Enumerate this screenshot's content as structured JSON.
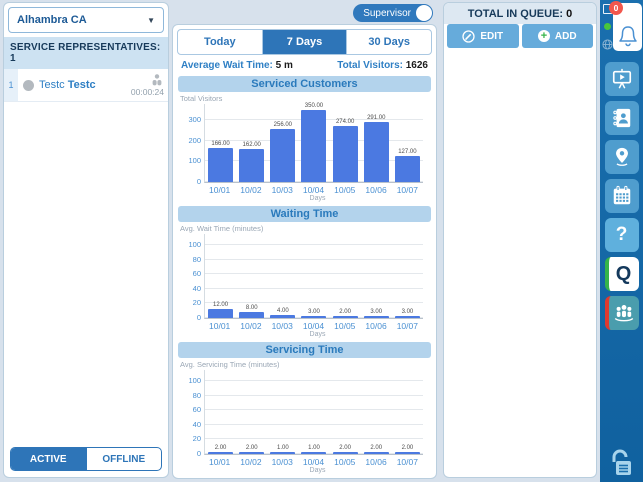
{
  "left_panel": {
    "location_dropdown": {
      "value": "Alhambra CA",
      "chevron": "▼"
    },
    "header": "SERVICE REPRESENTATIVES: 1",
    "representatives": [
      {
        "index": "1",
        "first_name": "Testc",
        "last_name": "Testc",
        "timer": "00:00:24"
      }
    ],
    "footer_tabs": [
      {
        "label": "ACTIVE",
        "selected": true
      },
      {
        "label": "OFFLINE",
        "selected": false
      }
    ]
  },
  "center_panel": {
    "supervisor_toggle": {
      "label": "Supervisor",
      "state": "on"
    },
    "period_tabs": [
      {
        "label": "Today",
        "selected": false
      },
      {
        "label": "7 Days",
        "selected": true
      },
      {
        "label": "30 Days",
        "selected": false
      }
    ],
    "stats": {
      "avg_wait_label": "Average Wait Time:",
      "avg_wait_value": "5 m",
      "total_visitors_label": "Total Visitors:",
      "total_visitors_value": "1626"
    }
  },
  "chart_data": [
    {
      "type": "bar",
      "title": "Serviced Customers",
      "ylabel": "Total Visitors",
      "xlabel": "Days",
      "categories": [
        "10/01",
        "10/02",
        "10/03",
        "10/04",
        "10/05",
        "10/06",
        "10/07"
      ],
      "values": [
        166,
        162,
        256,
        350,
        274,
        291,
        127
      ],
      "value_labels": [
        "166.00",
        "162.00",
        "256.00",
        "350.00",
        "274.00",
        "291.00",
        "127.00"
      ],
      "yticks": [
        0,
        100,
        200,
        300
      ],
      "ylim": [
        0,
        380
      ],
      "grid": true,
      "bar_color": "#4b79e1"
    },
    {
      "type": "bar",
      "title": "Waiting Time",
      "ylabel": "Avg. Wait Time (minutes)",
      "xlabel": "Days",
      "categories": [
        "10/01",
        "10/02",
        "10/03",
        "10/04",
        "10/05",
        "10/06",
        "10/07"
      ],
      "values": [
        12,
        8,
        4,
        3,
        2,
        3,
        3
      ],
      "value_labels": [
        "12.00",
        "8.00",
        "4.00",
        "3.00",
        "2.00",
        "3.00",
        "3.00"
      ],
      "yticks": [
        0,
        20,
        40,
        60,
        80,
        100
      ],
      "ylim": [
        0,
        115
      ],
      "grid": true,
      "bar_color": "#4b79e1"
    },
    {
      "type": "bar",
      "title": "Servicing Time",
      "ylabel": "Avg. Servicing Time (minutes)",
      "xlabel": "Days",
      "categories": [
        "10/01",
        "10/02",
        "10/03",
        "10/04",
        "10/05",
        "10/06",
        "10/07"
      ],
      "values": [
        2,
        2,
        1,
        1,
        2,
        2,
        2
      ],
      "value_labels": [
        "2.00",
        "2.00",
        "1.00",
        "1.00",
        "2.00",
        "2.00",
        "2.00"
      ],
      "yticks": [
        0,
        20,
        40,
        60,
        80,
        100
      ],
      "ylim": [
        0,
        115
      ],
      "grid": true,
      "bar_color": "#4b79e1"
    }
  ],
  "queue_panel": {
    "title_label": "TOTAL IN QUEUE:",
    "title_value": "0",
    "edit_label": "EDIT",
    "add_label": "ADD",
    "add_plus_glyph": "+"
  },
  "sidebar": {
    "notification_badge": "0",
    "help_glyph": "?",
    "q_glyph": "Q",
    "icons": [
      "slider-square",
      "green-status-dot",
      "notification-bell",
      "globe",
      "presentation-screen",
      "contacts-book",
      "location-pin",
      "calendar",
      "help-question",
      "q-logo",
      "queue-people",
      "unlock-document"
    ]
  },
  "colors": {
    "accent_blue": "#2e75b8",
    "bar_blue": "#4b79e1",
    "panel_header_light": "#cde2f2",
    "chart_header_bg": "#b3d3ec",
    "chart_header_text": "#2a7abc",
    "button_blue": "#66abdb",
    "sidebar_bg": "#1a6fae",
    "tile_blue": "#4f9dce",
    "badge_red": "#f2574d",
    "stripe_green": "#35b44a",
    "stripe_red": "#e0392e",
    "tile_teal": "#4a9dad",
    "page_bg": "#d7e1ec"
  }
}
